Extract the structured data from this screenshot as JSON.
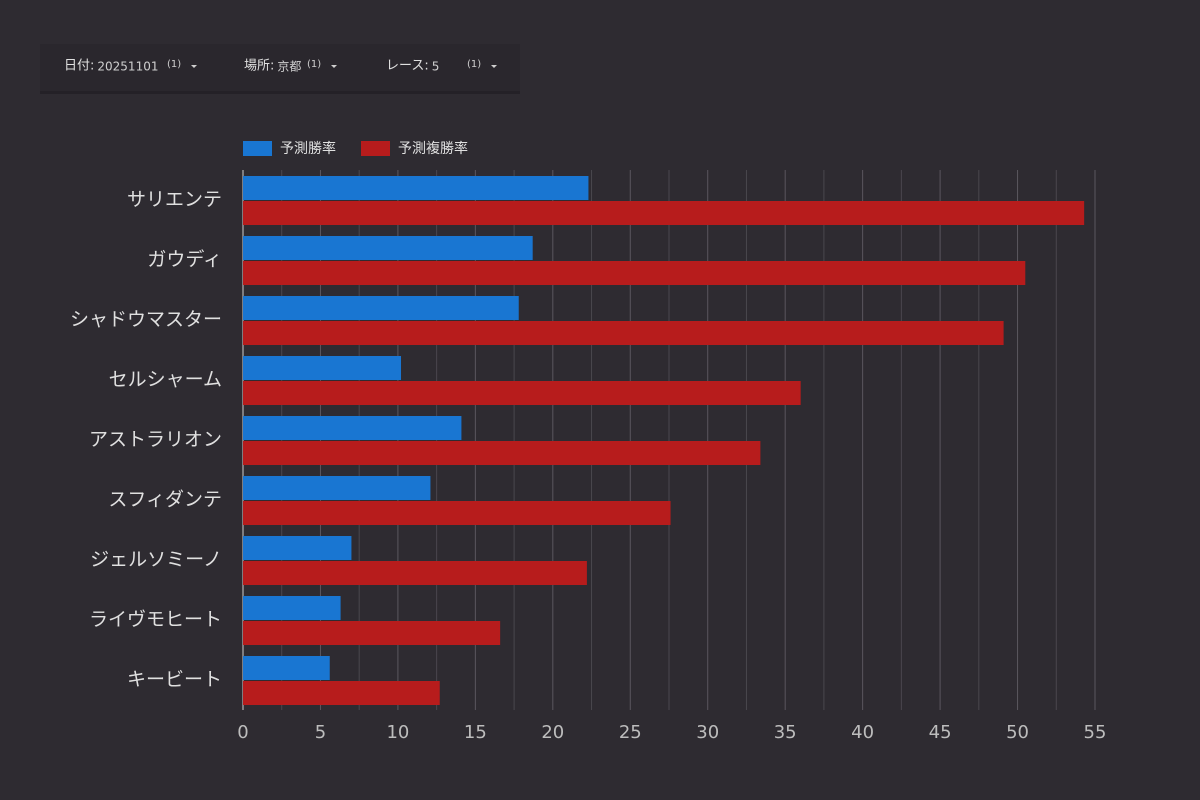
{
  "filters": [
    {
      "label": "日付:",
      "value": "20251101",
      "count": "(1)"
    },
    {
      "label": "場所:",
      "value": "京都",
      "count": "(1)"
    },
    {
      "label": "レース:",
      "value": "5",
      "count": "(1)"
    }
  ],
  "chart_data": {
    "type": "hbar",
    "categories": [
      "サリエンテ",
      "ガウディ",
      "シャドウマスター",
      "セルシャーム",
      "アストラリオン",
      "スフィダンテ",
      "ジェルソミーノ",
      "ライヴモヒート",
      "キービート"
    ],
    "series": [
      {
        "name": "予測勝率",
        "color": "#1976d2",
        "values": [
          22.3,
          18.7,
          17.8,
          10.2,
          14.1,
          12.1,
          7.0,
          6.3,
          5.6
        ]
      },
      {
        "name": "予測複勝率",
        "color": "#b71c1c",
        "values": [
          54.3,
          50.5,
          49.1,
          36.0,
          33.4,
          27.6,
          22.2,
          16.6,
          12.7
        ]
      }
    ],
    "xlim": [
      0,
      55
    ],
    "xticks": [
      0,
      5,
      10,
      15,
      20,
      25,
      30,
      35,
      40,
      45,
      50,
      55
    ],
    "xminorticks": [
      2.5,
      7.5,
      12.5,
      17.5,
      22.5,
      27.5,
      32.5,
      37.5,
      42.5,
      47.5,
      52.5
    ],
    "grid": true,
    "legend": "top-left"
  }
}
